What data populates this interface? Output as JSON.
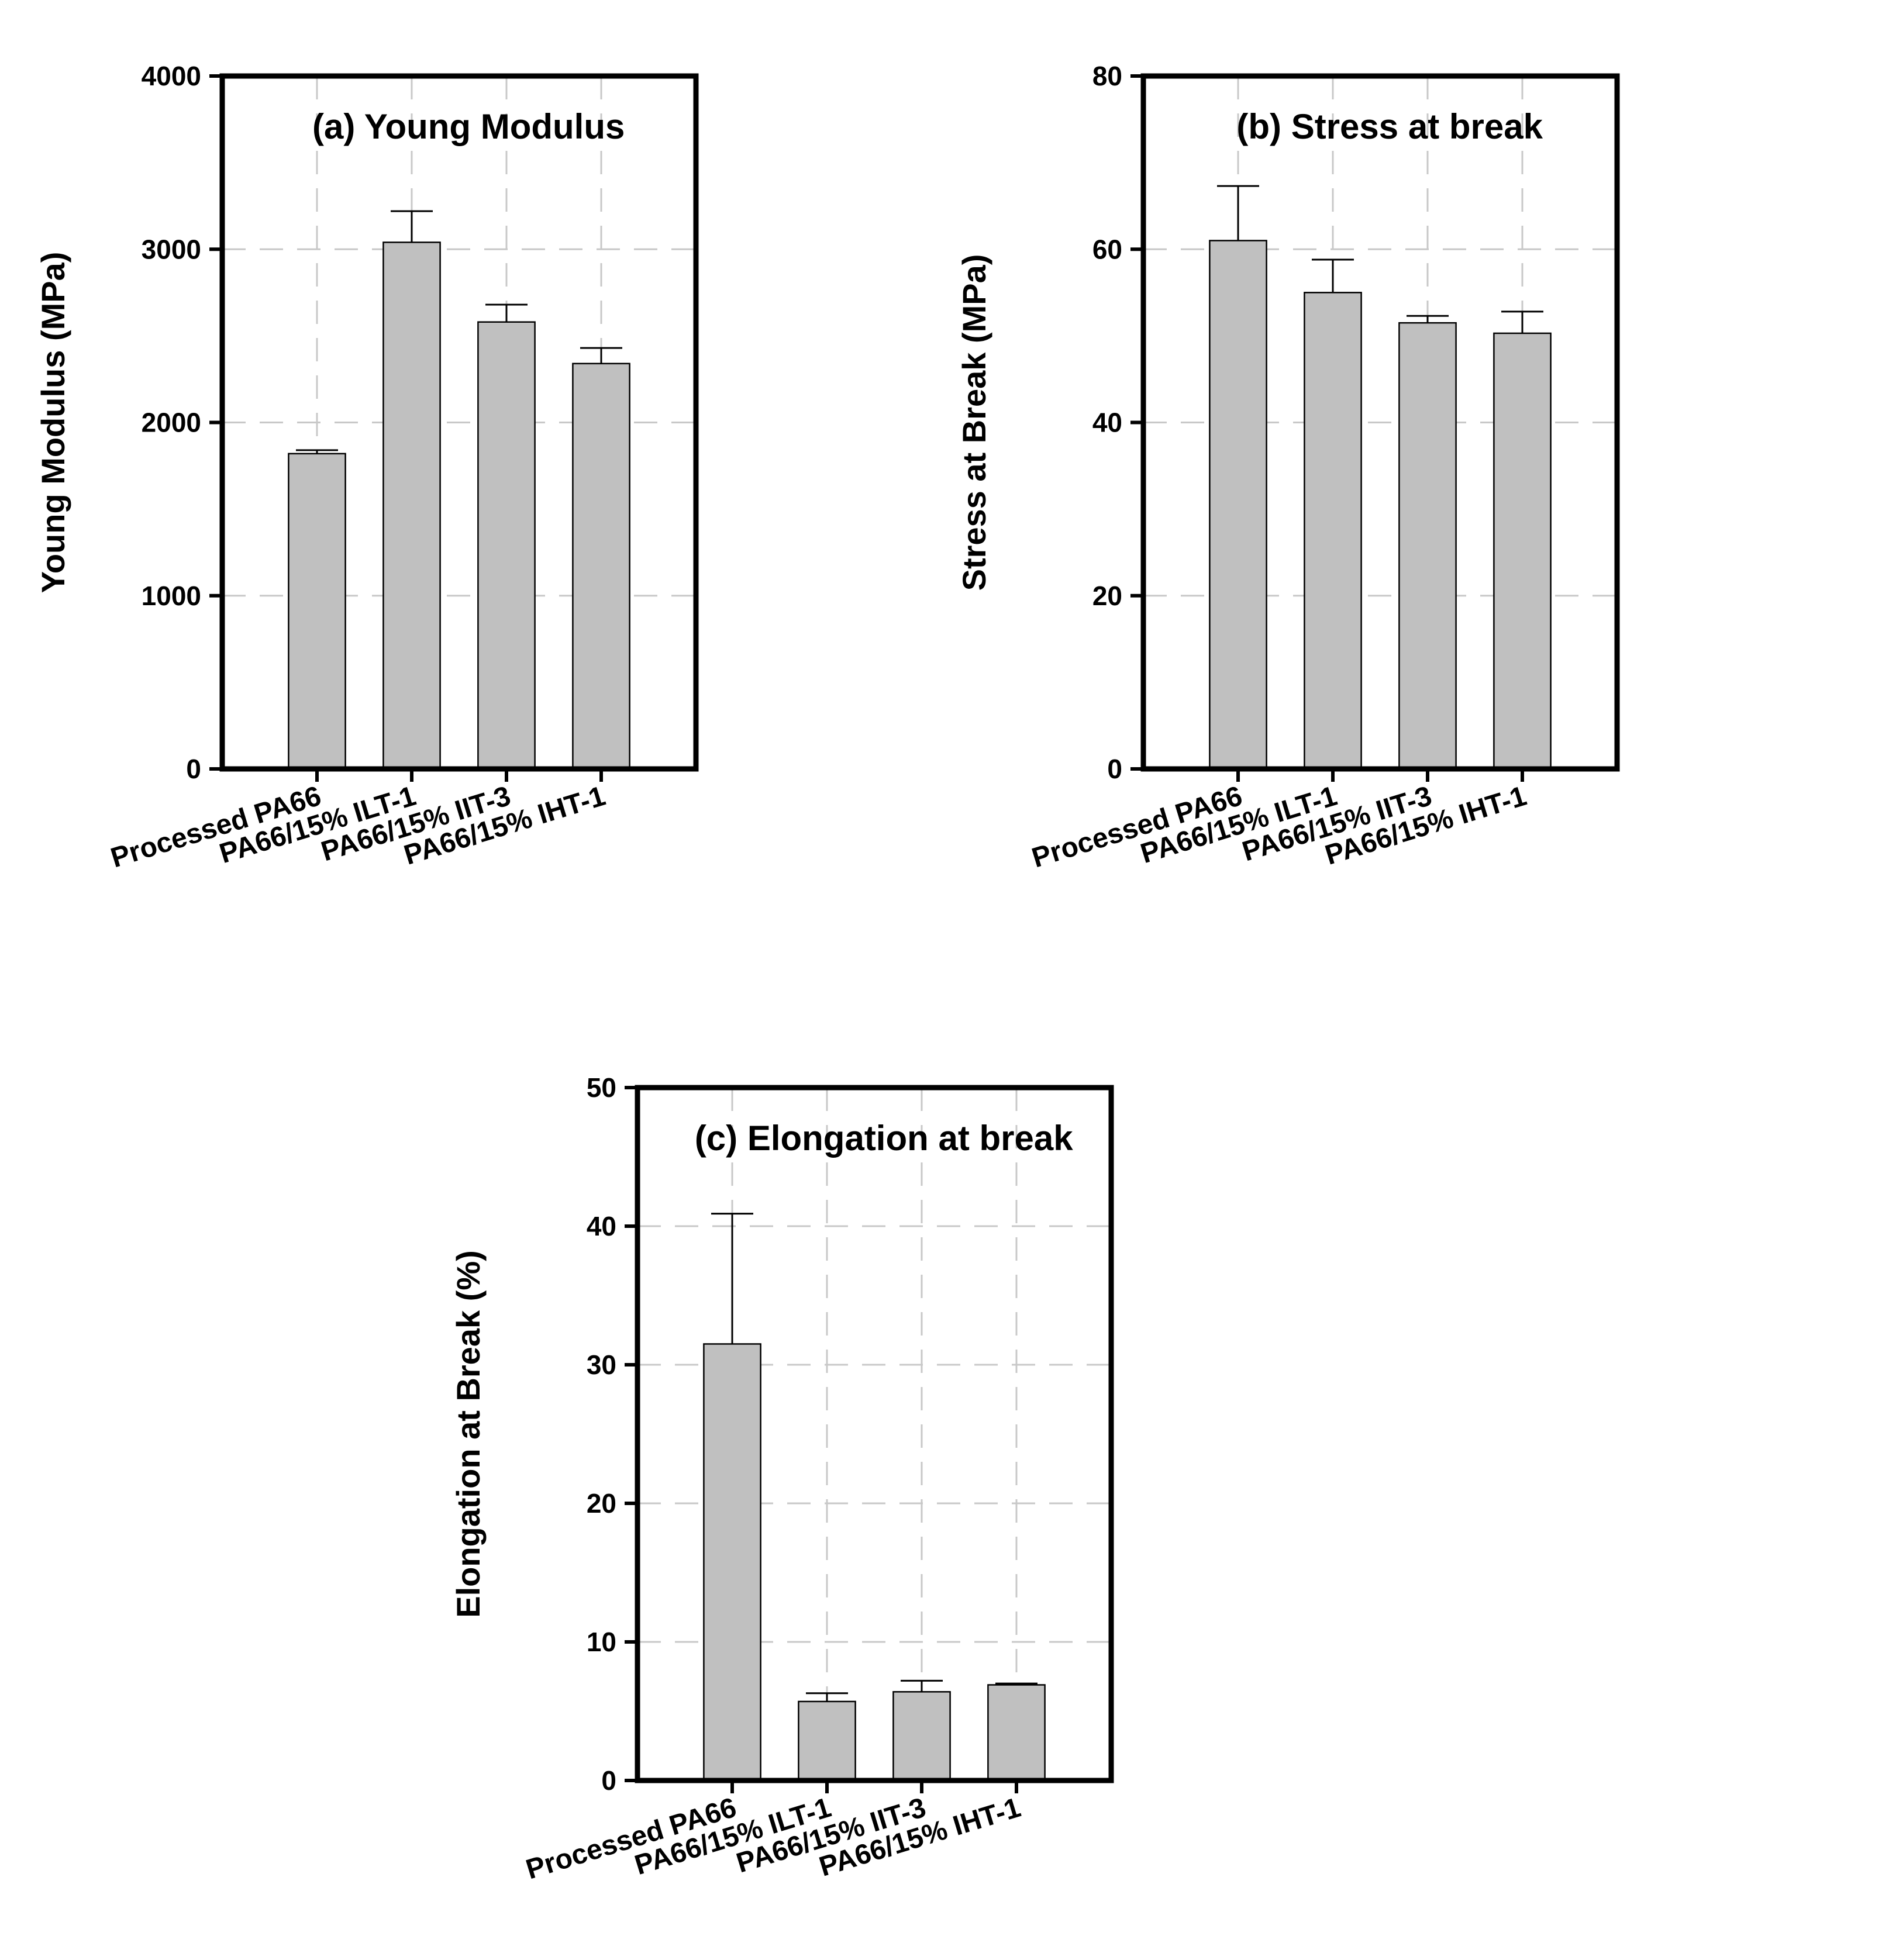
{
  "chart_data": [
    {
      "panel": "a",
      "type": "bar",
      "title": "(a) Young Modulus",
      "ylabel": "Young Modulus (MPa)",
      "xlabel": "",
      "categories": [
        "Processed PA66",
        "PA66/15% ILT-1",
        "PA66/15% IIT-3",
        "PA66/15% IHT-1"
      ],
      "values": [
        1820,
        3040,
        2580,
        2340
      ],
      "errors": [
        20,
        180,
        100,
        90
      ],
      "ylim": [
        0,
        4000
      ],
      "yticks": [
        0,
        1000,
        2000,
        3000,
        4000
      ],
      "grid": true,
      "colors": {
        "bar": "#c0c0c0",
        "grid": "#c8c8c8"
      }
    },
    {
      "panel": "b",
      "type": "bar",
      "title": "(b) Stress at break",
      "ylabel": "Stress at Break (MPa)",
      "xlabel": "",
      "categories": [
        "Processed PA66",
        "PA66/15% ILT-1",
        "PA66/15% IIT-3",
        "PA66/15% IHT-1"
      ],
      "values": [
        61,
        55,
        51.5,
        50.3
      ],
      "errors": [
        6.3,
        3.8,
        0.8,
        2.5
      ],
      "ylim": [
        0,
        80
      ],
      "yticks": [
        0,
        20,
        40,
        60,
        80
      ],
      "grid": true,
      "colors": {
        "bar": "#c0c0c0",
        "grid": "#c8c8c8"
      }
    },
    {
      "panel": "c",
      "type": "bar",
      "title": "(c) Elongation at break",
      "ylabel": "Elongation at Break (%)",
      "xlabel": "",
      "categories": [
        "Processed PA66",
        "PA66/15% ILT-1",
        "PA66/15% IIT-3",
        "PA66/15% IHT-1"
      ],
      "values": [
        31.5,
        5.7,
        6.4,
        6.9
      ],
      "errors": [
        9.4,
        0.6,
        0.8,
        0.1
      ],
      "ylim": [
        0,
        50
      ],
      "yticks": [
        0,
        10,
        20,
        30,
        40,
        50
      ],
      "grid": true,
      "colors": {
        "bar": "#c0c0c0",
        "grid": "#c8c8c8"
      }
    }
  ]
}
